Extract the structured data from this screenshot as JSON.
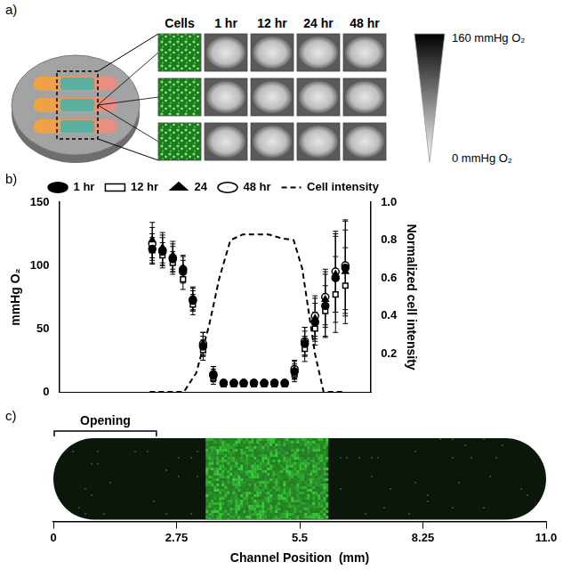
{
  "panel_labels": [
    "a)",
    "b)",
    "c)"
  ],
  "panel_a": {
    "columns": [
      "Cells",
      "1 hr",
      "12 hr",
      "24 hr",
      "48 hr"
    ],
    "rows": 3,
    "scale": {
      "top": "160 mmHg O₂",
      "bottom": "0 mmHg O₂"
    }
  },
  "chart_data": [
    {
      "type": "scatter",
      "y_label": "mmHg O₂",
      "y2_label": "Normalized cell intensity",
      "legend": "top",
      "grid": false,
      "xlim": [
        0.2,
        7.5
      ],
      "xticks": [],
      "ylim": [
        0,
        150
      ],
      "yticks": [
        0,
        50,
        100,
        150
      ],
      "y2lim": [
        0,
        1
      ],
      "y2ticks": [
        0.2,
        0.4,
        0.6,
        0.8,
        {
          "value": 1,
          "label": "1.0"
        }
      ],
      "series": [
        {
          "name": "1 hr",
          "color": "#000000",
          "marker": "circle",
          "x": [
            2.38,
            2.62,
            2.86,
            3.1,
            3.33,
            3.57,
            3.81,
            4.05,
            4.29,
            4.52,
            4.76,
            5.0,
            5.24,
            5.48,
            5.71,
            5.95,
            6.19,
            6.43,
            6.67,
            6.9
          ],
          "values": [
            113,
            111,
            105,
            95,
            72,
            36,
            13,
            7,
            7,
            7,
            7,
            7,
            7,
            7,
            16,
            38,
            55,
            68,
            90,
            98
          ],
          "errors": [
            12,
            11,
            10,
            9,
            8,
            8,
            5,
            2,
            2,
            2,
            2,
            2,
            2,
            2,
            6,
            10,
            15,
            25,
            35,
            38
          ]
        },
        {
          "name": "12 hr",
          "color": "#000000",
          "marker": "square-open",
          "x": [
            2.38,
            2.62,
            2.86,
            3.1,
            3.33,
            3.57,
            3.81,
            4.05,
            4.29,
            4.52,
            4.76,
            5.0,
            5.24,
            5.48,
            5.71,
            5.95,
            6.19,
            6.43,
            6.67,
            6.9
          ],
          "values": [
            112,
            108,
            102,
            89,
            69,
            33,
            11,
            6,
            6,
            6,
            6,
            6,
            6,
            6,
            14,
            34,
            50,
            64,
            77,
            84
          ],
          "errors": [
            10,
            10,
            9,
            8,
            8,
            8,
            5,
            2,
            2,
            2,
            2,
            2,
            2,
            2,
            6,
            10,
            13,
            20,
            30,
            30
          ]
        },
        {
          "name": "24",
          "color": "#000000",
          "marker": "triangle",
          "x": [
            2.38,
            2.62,
            2.86,
            3.1,
            3.33,
            3.57,
            3.81,
            4.05,
            4.29,
            4.52,
            4.76,
            5.0,
            5.24,
            5.48,
            5.71,
            5.95,
            6.19,
            6.43,
            6.67,
            6.9
          ],
          "values": [
            120,
            114,
            108,
            98,
            74,
            38,
            14,
            7,
            7,
            7,
            7,
            7,
            7,
            7,
            17,
            40,
            58,
            73,
            93,
            95
          ],
          "errors": [
            14,
            12,
            11,
            10,
            9,
            9,
            6,
            2,
            2,
            2,
            2,
            2,
            2,
            2,
            7,
            11,
            16,
            22,
            30,
            33
          ]
        },
        {
          "name": "48 hr",
          "color": "#000000",
          "marker": "circle-open",
          "x": [
            2.38,
            2.62,
            2.86,
            3.1,
            3.33,
            3.57,
            3.81,
            4.05,
            4.29,
            4.52,
            4.76,
            5.0,
            5.24,
            5.48,
            5.71,
            5.95,
            6.19,
            6.43,
            6.67,
            6.9
          ],
          "values": [
            117,
            112,
            106,
            97,
            73,
            38,
            14,
            7,
            7,
            7,
            7,
            7,
            7,
            7,
            18,
            40,
            60,
            75,
            95,
            100
          ],
          "errors": [
            13,
            12,
            11,
            10,
            9,
            9,
            6,
            2,
            2,
            2,
            2,
            2,
            2,
            2,
            7,
            11,
            16,
            22,
            32,
            35
          ]
        },
        {
          "name": "Cell intensity",
          "color": "#000000",
          "type": "line",
          "line_style": "dashed",
          "axis": "y2",
          "x": [
            2.32,
            3.12,
            3.41,
            3.71,
            3.95,
            4.21,
            4.5,
            5.1,
            5.4,
            5.69,
            5.89,
            6.19,
            6.39,
            6.88
          ],
          "values": [
            0,
            0,
            0.1,
            0.35,
            0.6,
            0.8,
            0.83,
            0.83,
            0.81,
            0.8,
            0.65,
            0.2,
            0,
            0
          ]
        }
      ]
    },
    {
      "type": "image",
      "x_label": "Channel Position  (mm)",
      "xlim": [
        0,
        11
      ],
      "xticks": [
        0,
        2.75,
        5.5,
        8.25,
        {
          "value": 11,
          "label": "11.0"
        }
      ],
      "annotations": [
        {
          "text": "Opening",
          "x": [
            0,
            2.3
          ]
        }
      ],
      "cells": [
        3.4,
        6.1
      ],
      "color": "#3cd23c"
    }
  ]
}
